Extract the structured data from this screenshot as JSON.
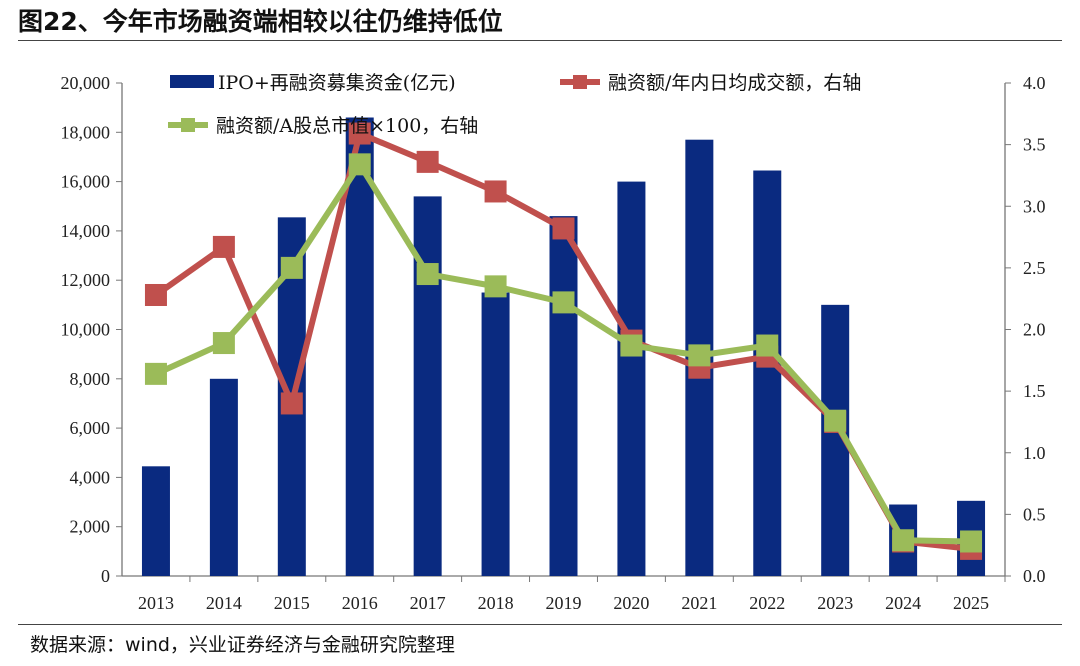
{
  "title": "图22、今年市场融资端相较以往仍维持低位",
  "source": "数据来源：wind，兴业证券经济与金融研究院整理",
  "chart_data": {
    "type": "bar",
    "categories": [
      "2013",
      "2014",
      "2015",
      "2016",
      "2017",
      "2018",
      "2019",
      "2020",
      "2021",
      "2022",
      "2023",
      "2024",
      "2025"
    ],
    "left_axis": {
      "range": [
        0,
        20000
      ],
      "ticks": [
        "0",
        "2,000",
        "4,000",
        "6,000",
        "8,000",
        "10,000",
        "12,000",
        "14,000",
        "16,000",
        "18,000",
        "20,000"
      ]
    },
    "right_axis": {
      "range": [
        0,
        4.0
      ],
      "ticks": [
        "0.0",
        "0.5",
        "1.0",
        "1.5",
        "2.0",
        "2.5",
        "3.0",
        "3.5",
        "4.0"
      ]
    },
    "grid": false,
    "legend_placement": "top",
    "series": [
      {
        "name": "IPO+再融资募集资金(亿元)",
        "type": "bar",
        "axis": "left",
        "color": "#0a2a80",
        "values": [
          4450,
          8000,
          14550,
          18600,
          15400,
          11500,
          14600,
          16000,
          17700,
          16450,
          11000,
          2900,
          3050
        ]
      },
      {
        "name": "融资额/年内日均成交额，右轴",
        "type": "line",
        "axis": "right",
        "color": "#c0504d",
        "values": [
          2.28,
          2.67,
          1.4,
          3.59,
          3.36,
          3.12,
          2.82,
          1.91,
          1.69,
          1.78,
          1.25,
          0.28,
          0.22
        ]
      },
      {
        "name": "融资额/A股总市值×100，右轴",
        "type": "line",
        "axis": "right",
        "color": "#9bbb59",
        "values": [
          1.64,
          1.89,
          2.5,
          3.34,
          2.45,
          2.35,
          2.22,
          1.87,
          1.79,
          1.87,
          1.26,
          0.29,
          0.28
        ]
      }
    ]
  }
}
